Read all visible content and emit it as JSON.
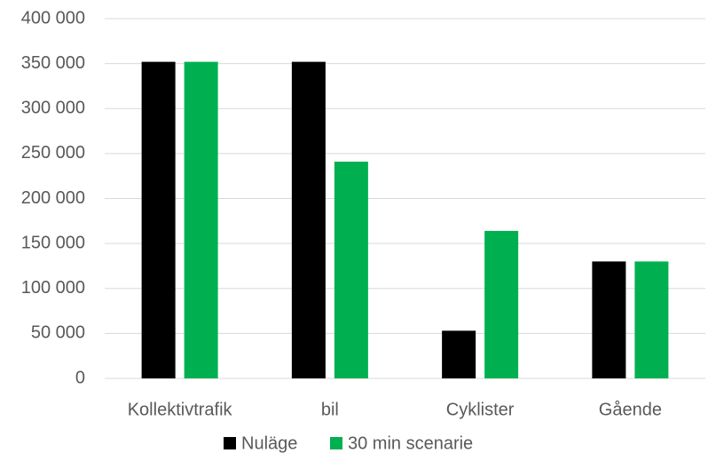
{
  "chart_data": {
    "type": "bar",
    "categories": [
      "Kollektivtrafik",
      "bil",
      "Cyklister",
      "Gående"
    ],
    "series": [
      {
        "name": "Nuläge",
        "color": "#000000",
        "values": [
          352000,
          352000,
          53000,
          130000
        ]
      },
      {
        "name": "30 min scenarie",
        "color": "#00b050",
        "values": [
          352000,
          241000,
          164000,
          130000
        ]
      }
    ],
    "ylim": [
      0,
      400000
    ],
    "yticks": [
      0,
      {
        "value": 50000,
        "label": "50 000"
      },
      {
        "value": 100000,
        "label": "100 000"
      },
      {
        "value": 150000,
        "label": "150 000"
      },
      {
        "value": 200000,
        "label": "200 000"
      },
      {
        "value": 250000,
        "label": "250 000"
      },
      {
        "value": 300000,
        "label": "300 000"
      },
      {
        "value": 350000,
        "label": "350 000"
      },
      {
        "value": 400000,
        "label": "400 000"
      }
    ],
    "grid": true,
    "legend": "bottom"
  }
}
